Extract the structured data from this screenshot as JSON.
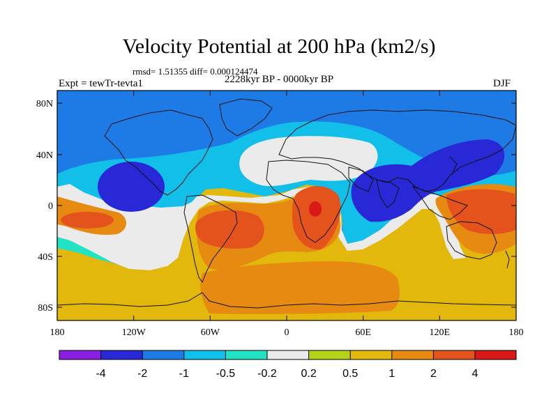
{
  "title": "Velocity Potential at 200 hPa (km2/s)",
  "stats": "rmsd= 1.51355 diff= 0.000124474",
  "period": "2228kyr BP - 0000kyr BP",
  "experiment": "Expt = tewTr-tevta1",
  "season": "DJF",
  "map": {
    "lat_labels": [
      "80N",
      "40N",
      "0",
      "40S",
      "80S"
    ],
    "lon_labels": [
      "180",
      "120W",
      "60W",
      "0",
      "60E",
      "120E",
      "180"
    ],
    "colors": {
      "deep_blue": "#2828d6",
      "blue": "#1e7be6",
      "light_blue": "#12bfe8",
      "teal": "#22e3c4",
      "neutral": "#ebebeb",
      "yellow": "#e3b80c",
      "orange": "#e68a12",
      "red_orange": "#e4531c",
      "red": "#d91818"
    }
  },
  "colorbar": {
    "labels": [
      "-4",
      "-2",
      "-1",
      "-0.5",
      "-0.2",
      "0.2",
      "0.5",
      "1",
      "2",
      "4"
    ],
    "colors": [
      "#8a1ee0",
      "#2828d6",
      "#1e7be6",
      "#12bfe8",
      "#22e3c4",
      "#ebebeb",
      "#b5d21a",
      "#e3b80c",
      "#e68a12",
      "#e4531c",
      "#d91818"
    ]
  }
}
